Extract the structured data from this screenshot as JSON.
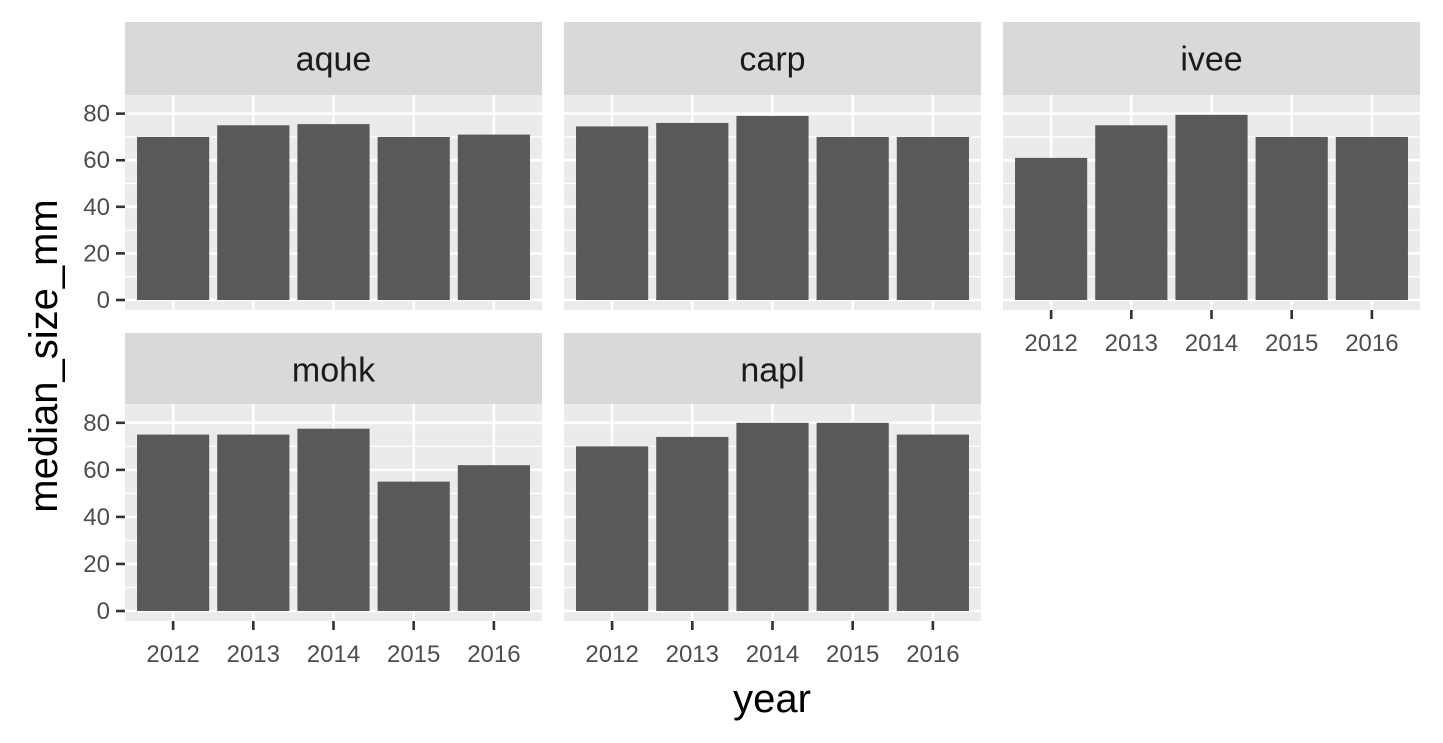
{
  "chart_data": {
    "type": "bar",
    "facet_by": "site",
    "xlabel": "year",
    "ylabel": "median_size_mm",
    "categories": [
      "2012",
      "2013",
      "2014",
      "2015",
      "2016"
    ],
    "ylim": [
      0,
      88
    ],
    "y_ticks": [
      0,
      20,
      40,
      60,
      80
    ],
    "grid": true,
    "panel_background": "#ebebeb",
    "strip_background": "#d9d9d9",
    "bar_color": "#595959",
    "facets": [
      {
        "name": "aque",
        "values": [
          70,
          75,
          75.5,
          70,
          71
        ]
      },
      {
        "name": "carp",
        "values": [
          74.5,
          76,
          79,
          70,
          70
        ]
      },
      {
        "name": "ivee",
        "values": [
          61,
          75,
          79.5,
          70,
          70
        ]
      },
      {
        "name": "mohk",
        "values": [
          75,
          75,
          77.5,
          55,
          62
        ]
      },
      {
        "name": "napl",
        "values": [
          70,
          74,
          80,
          80,
          75
        ]
      }
    ]
  }
}
